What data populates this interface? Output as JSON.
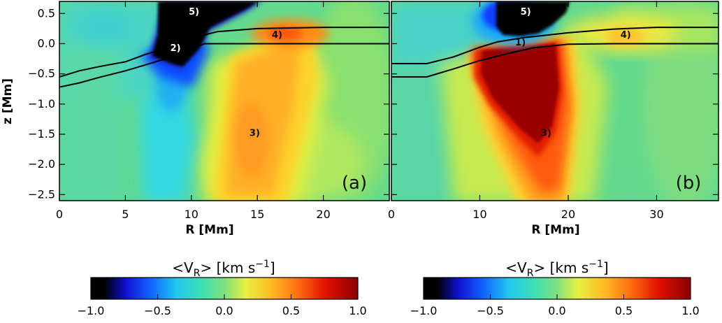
{
  "chart_data": [
    {
      "type": "heatmap",
      "panel_label": "(a)",
      "xlabel": "R [Mm]",
      "ylabel": "z [Mm]",
      "xlim": [
        0,
        25
      ],
      "ylim": [
        -2.6,
        0.7
      ],
      "xticks": [
        0,
        5,
        10,
        15,
        20
      ],
      "yticks": [
        0.5,
        0.0,
        -0.5,
        -1.0,
        -1.5,
        -2.0,
        -2.5
      ],
      "ytick_labels": [
        "0.5",
        "0.0",
        "−0.5",
        "−1.0",
        "−1.5",
        "−2.0",
        "−2.5"
      ],
      "annotations": [
        {
          "text": "5)",
          "x": 10.2,
          "y": 0.48
        },
        {
          "text": "2)",
          "x": 8.8,
          "y": -0.12
        },
        {
          "text": "4)",
          "x": 16.5,
          "y": 0.1
        },
        {
          "text": "3)",
          "x": 14.8,
          "y": -1.53
        }
      ],
      "contour_lines": [
        [
          [
            0,
            -0.55
          ],
          [
            1.5,
            -0.45
          ],
          [
            3,
            -0.38
          ],
          [
            5,
            -0.3
          ],
          [
            6.5,
            -0.18
          ],
          [
            8,
            -0.08
          ],
          [
            9.5,
            0.0
          ],
          [
            10.5,
            0.12
          ],
          [
            12,
            0.2
          ],
          [
            15,
            0.25
          ],
          [
            20,
            0.27
          ],
          [
            25,
            0.27
          ]
        ],
        [
          [
            0,
            -0.72
          ],
          [
            1.5,
            -0.65
          ],
          [
            3,
            -0.56
          ],
          [
            5,
            -0.45
          ],
          [
            7,
            -0.32
          ],
          [
            8.5,
            -0.22
          ],
          [
            10,
            -0.08
          ],
          [
            11,
            0.0
          ],
          [
            14,
            0.0
          ],
          [
            20,
            0.0
          ],
          [
            25,
            0.0
          ]
        ]
      ],
      "colorbar": {
        "label": "<V_R> [km s^-1]",
        "range": [
          -1.0,
          1.0
        ],
        "ticks": [
          "−1.0",
          "−0.5",
          "0.0",
          "0.5",
          "1.0"
        ]
      }
    },
    {
      "type": "heatmap",
      "panel_label": "(b)",
      "xlabel": "R [Mm]",
      "ylabel": "",
      "xlim": [
        0,
        37
      ],
      "ylim": [
        -2.6,
        0.7
      ],
      "xticks": [
        0,
        10,
        20,
        30
      ],
      "yticks": [],
      "annotations": [
        {
          "text": "5)",
          "x": 15.2,
          "y": 0.48
        },
        {
          "text": "1)",
          "x": 14.6,
          "y": -0.03
        },
        {
          "text": "4)",
          "x": 26.5,
          "y": 0.1
        },
        {
          "text": "3)",
          "x": 17.5,
          "y": -1.53
        }
      ],
      "contour_lines": [
        [
          [
            0,
            -0.33
          ],
          [
            4,
            -0.33
          ],
          [
            7,
            -0.22
          ],
          [
            10,
            -0.06
          ],
          [
            12,
            0.03
          ],
          [
            15,
            0.1
          ],
          [
            20,
            0.18
          ],
          [
            25,
            0.24
          ],
          [
            30,
            0.27
          ],
          [
            37,
            0.27
          ]
        ],
        [
          [
            0,
            -0.55
          ],
          [
            4,
            -0.55
          ],
          [
            7,
            -0.42
          ],
          [
            10,
            -0.28
          ],
          [
            13,
            -0.17
          ],
          [
            16,
            -0.07
          ],
          [
            20,
            -0.01
          ],
          [
            25,
            0.0
          ],
          [
            37,
            0.0
          ]
        ]
      ],
      "colorbar": {
        "label": "<V_R> [km s^-1]",
        "range": [
          -1.0,
          1.0
        ],
        "ticks": [
          "−1.0",
          "−0.5",
          "0.0",
          "0.5",
          "1.0"
        ]
      }
    }
  ]
}
